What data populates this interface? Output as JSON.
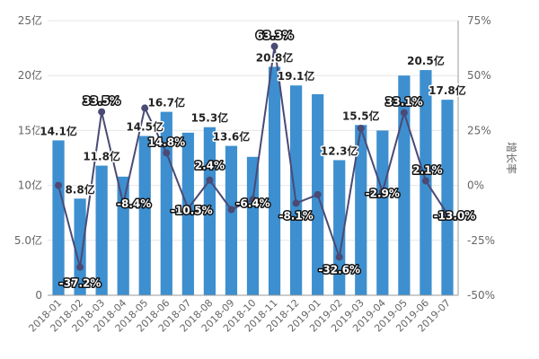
{
  "chart_data": {
    "type": "bar",
    "title": "",
    "xlabel": "",
    "ylabel": "",
    "y2label": "增长率",
    "categories": [
      "2018-01",
      "2018-02",
      "2018-03",
      "2018-04",
      "2018-05",
      "2018-06",
      "2018-07",
      "2018-08",
      "2018-09",
      "2018-10",
      "2018-11",
      "2018-12",
      "2019-01",
      "2019-02",
      "2019-03",
      "2019-04",
      "2019-05",
      "2019-06",
      "2019-07"
    ],
    "series": [
      {
        "type": "bar",
        "axis": "left",
        "values": [
          14.1,
          8.8,
          11.8,
          10.8,
          14.5,
          16.7,
          14.8,
          15.3,
          13.6,
          12.6,
          20.8,
          19.1,
          18.3,
          12.3,
          15.5,
          15.0,
          20.0,
          20.5,
          17.8
        ],
        "labels": [
          "14.1亿",
          "8.8亿",
          "11.8亿",
          "",
          "14.5亿",
          "16.7亿",
          "",
          "15.3亿",
          "13.6亿",
          "",
          "20.8亿",
          "19.1亿",
          "",
          "12.3亿",
          "15.5亿",
          "",
          "",
          "20.5亿",
          "17.8亿"
        ]
      },
      {
        "type": "line",
        "axis": "right",
        "values": [
          0,
          -37.2,
          33.5,
          -8.4,
          35.2,
          14.8,
          -10.5,
          2.4,
          -11.0,
          -6.4,
          63.3,
          -8.1,
          -4.2,
          -32.6,
          26.0,
          -2.9,
          33.1,
          2.1,
          -13.0
        ],
        "labels": [
          "",
          "-37.2%",
          "33.5%",
          "-8.4%",
          "",
          "14.8%",
          "-10.5%",
          "2.4%",
          "",
          "-6.4%",
          "63.3%",
          "-8.1%",
          "",
          "-32.6%",
          "",
          "-2.9%",
          "33.1%",
          "2.1%",
          "-13.0%"
        ]
      }
    ],
    "y_left": {
      "min": 0,
      "max": 25,
      "ticks": [
        "0",
        "5.0亿",
        "10亿",
        "15亿",
        "20亿",
        "25亿"
      ]
    },
    "y_right": {
      "min": -50,
      "max": 75,
      "ticks": [
        "-50%",
        "-25%",
        "0%",
        "25%",
        "50%",
        "75%"
      ]
    },
    "grid": true,
    "legend": "none",
    "colors": {
      "bar": "#3d8fcf",
      "line": "#4a4a75",
      "grid": "#e6e6e6",
      "axis": "#999999"
    }
  }
}
